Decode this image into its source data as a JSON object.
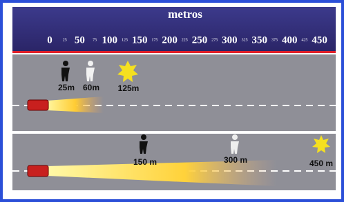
{
  "header": {
    "title": "metros",
    "scale": [
      "0",
      "25",
      "50",
      "75",
      "100",
      "125",
      "150",
      "175",
      "200",
      "225",
      "250",
      "275",
      "300",
      "325",
      "350",
      "375",
      "400",
      "425",
      "450"
    ]
  },
  "panels": [
    {
      "labels": [
        "25m",
        "60m",
        "125m"
      ]
    },
    {
      "labels": [
        "150 m",
        "300 m",
        "450 m"
      ]
    }
  ]
}
